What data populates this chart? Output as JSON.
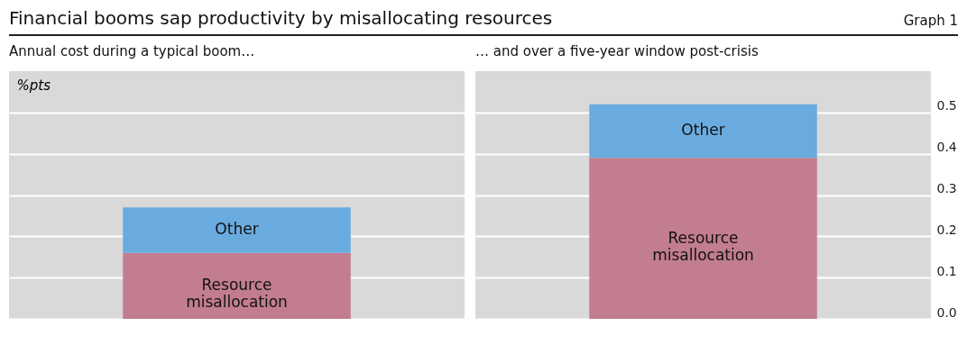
{
  "chart_data": [
    {
      "type": "bar",
      "title": "Financial booms sap productivity by misallocating resources",
      "annotations": [
        "Graph 1"
      ],
      "subtitle": "Annual cost during a typical boom…",
      "ylabel": "%pts",
      "categories": [
        null
      ],
      "stacked": true,
      "series": [
        {
          "name": "Resource misallocation",
          "color": "#c27d8e",
          "values": [
            0.16
          ]
        },
        {
          "name": "Other",
          "color": "#6aabdf",
          "values": [
            0.11
          ]
        }
      ],
      "ylim": [
        0,
        0.6
      ],
      "yticks": [
        0.0,
        0.1,
        0.2,
        0.3,
        0.4,
        0.5
      ],
      "grid": "y",
      "tick_labels": false
    },
    {
      "type": "bar",
      "subtitle": "… and over a five-year window post-crisis",
      "categories": [
        null
      ],
      "stacked": true,
      "series": [
        {
          "name": "Resource misallocation",
          "color": "#c27d8e",
          "values": [
            0.39
          ]
        },
        {
          "name": "Other",
          "color": "#6aabdf",
          "values": [
            0.13
          ]
        }
      ],
      "ylim": [
        0,
        0.6
      ],
      "yticks": [
        {
          "value": 0.0,
          "label": "0.0"
        },
        0.1,
        0.2,
        0.3,
        0.4,
        0.5
      ],
      "grid": "y",
      "tick_labels": "y"
    }
  ]
}
